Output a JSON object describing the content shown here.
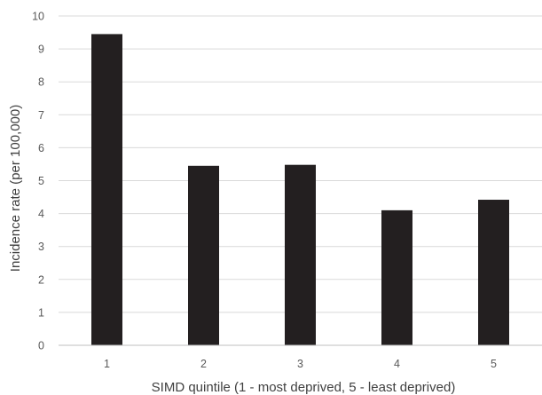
{
  "chart_data": {
    "type": "bar",
    "categories": [
      "1",
      "2",
      "3",
      "4",
      "5"
    ],
    "values": [
      9.45,
      5.45,
      5.48,
      4.1,
      4.42
    ],
    "xlabel": "SIMD quintile (1 - most deprived, 5 - least deprived)",
    "ylabel": "Incidence rate (per 100,000)",
    "ylim": [
      0,
      10
    ],
    "yticks": [
      "0",
      "1",
      "2",
      "3",
      "4",
      "5",
      "6",
      "7",
      "8",
      "9",
      "10"
    ],
    "grid": true,
    "legend": "none",
    "colors": {
      "bar": "#231f20",
      "grid": "#d9d9d9",
      "axis": "#bfbfbf",
      "text": "#595959"
    }
  }
}
